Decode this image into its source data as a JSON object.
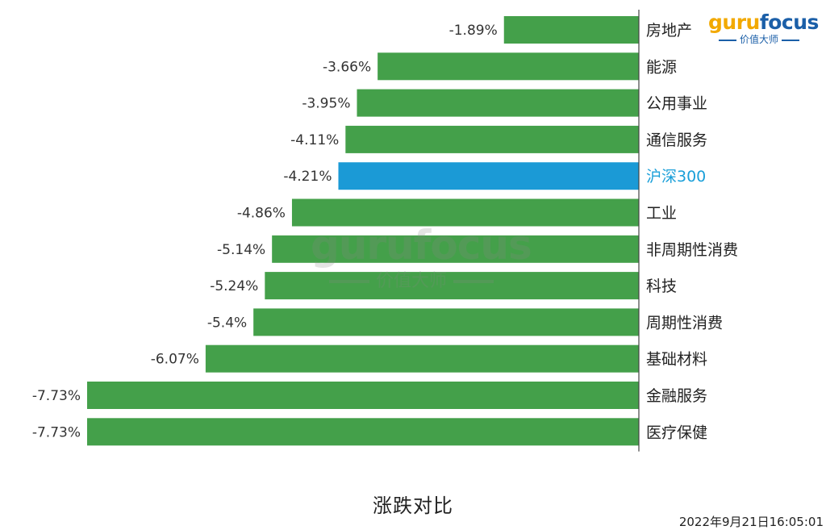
{
  "chart_data": {
    "type": "bar",
    "orientation": "horizontal",
    "categories": [
      "房地产",
      "能源",
      "公用事业",
      "通信服务",
      "沪深300",
      "工业",
      "非周期性消费",
      "科技",
      "周期性消费",
      "基础材料",
      "金融服务",
      "医疗保健"
    ],
    "values": [
      -1.89,
      -3.66,
      -3.95,
      -4.11,
      -4.21,
      -4.86,
      -5.14,
      -5.24,
      -5.4,
      -6.07,
      -7.73,
      -7.73
    ],
    "value_labels": [
      "-1.89%",
      "-3.66%",
      "-3.95%",
      "-4.11%",
      "-4.21%",
      "-4.86%",
      "-5.14%",
      "-5.24%",
      "-5.4%",
      "-6.07%",
      "-7.73%",
      "-7.73%"
    ],
    "highlight": "沪深300",
    "colors": {
      "default": "#44a04a",
      "highlight": "#1b9ad6"
    },
    "xlim": [
      -7.73,
      0
    ],
    "grid": false,
    "title": "涨跌对比"
  },
  "timestamp": "2022年9月21日16:05:01",
  "logo": {
    "main_a": "guru",
    "main_b": "focus",
    "sub": "价值大师"
  },
  "watermark": {
    "main": "gurufocus",
    "sub": "价值大师"
  }
}
